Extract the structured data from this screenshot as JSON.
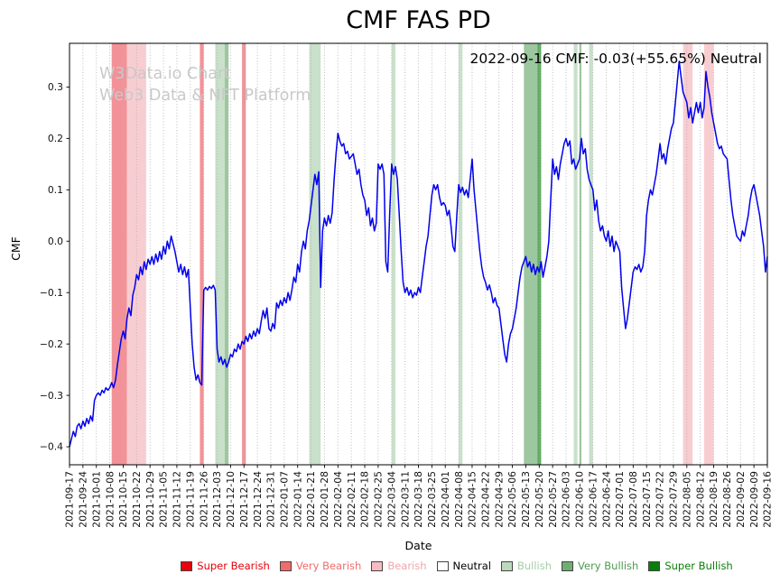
{
  "page": {
    "title": "CMF FAS PD"
  },
  "annotation": {
    "text": "2022-09-16 CMF: -0.03(+55.65%) Neutral"
  },
  "watermark": {
    "line1": "W3Data.io Chart",
    "line2": "Web3 Data & NFT Platform"
  },
  "axes": {
    "x_label": "Date",
    "y_label": "CMF"
  },
  "legend": {
    "items": [
      {
        "label": "Super Bearish",
        "color": "#e8000d",
        "text_color": "#e8000d"
      },
      {
        "label": "Very Bearish",
        "color": "#f26b6b",
        "text_color": "#ef6b6b"
      },
      {
        "label": "Bearish",
        "color": "#f7bcc1",
        "text_color": "#efa6ad"
      },
      {
        "label": "Neutral",
        "color": "#ffffff",
        "text_color": "#000000"
      },
      {
        "label": "Bullish",
        "color": "#bcd9bd",
        "text_color": "#a5cda7"
      },
      {
        "label": "Very Bullish",
        "color": "#6fae72",
        "text_color": "#4e9a51"
      },
      {
        "label": "Super Bullish",
        "color": "#0a7e0a",
        "text_color": "#0a7e0a"
      }
    ]
  },
  "chart_data": {
    "type": "line",
    "title": "CMF FAS PD",
    "xlabel": "Date",
    "ylabel": "CMF",
    "series_name": "CMF",
    "line_color": "#0000ee",
    "grid": "vertical-dotted",
    "legend_position": "bottom",
    "ylim": [
      -0.435,
      0.385
    ],
    "y_ticks": [
      -0.4,
      -0.3,
      -0.2,
      -0.1,
      0.0,
      0.1,
      0.2,
      0.3
    ],
    "start_date": "2021-09-17",
    "end_date": "2022-09-16",
    "latest": {
      "date": "2022-09-16",
      "cmf": -0.03,
      "change": "+55.65%",
      "signal": "Neutral"
    },
    "x_tick_labels": [
      "2021-09-17",
      "2021-09-24",
      "2021-10-01",
      "2021-10-08",
      "2021-10-15",
      "2021-10-22",
      "2021-10-29",
      "2021-11-05",
      "2021-11-12",
      "2021-11-19",
      "2021-11-26",
      "2021-12-03",
      "2021-12-10",
      "2021-12-17",
      "2021-12-24",
      "2021-12-31",
      "2022-01-07",
      "2022-01-14",
      "2022-01-21",
      "2022-01-28",
      "2022-02-04",
      "2022-02-11",
      "2022-02-18",
      "2022-02-25",
      "2022-03-04",
      "2022-03-11",
      "2022-03-18",
      "2022-03-25",
      "2022-04-01",
      "2022-04-08",
      "2022-04-15",
      "2022-04-22",
      "2022-04-29",
      "2022-05-06",
      "2022-05-13",
      "2022-05-20",
      "2022-05-27",
      "2022-06-03",
      "2022-06-10",
      "2022-06-17",
      "2022-06-24",
      "2022-07-01",
      "2022-07-08",
      "2022-07-15",
      "2022-07-22",
      "2022-07-29",
      "2022-08-05",
      "2022-08-12",
      "2022-08-19",
      "2022-08-26",
      "2022-09-02",
      "2022-09-09",
      "2022-09-16"
    ],
    "values": [
      -0.4,
      -0.385,
      -0.37,
      -0.38,
      -0.36,
      -0.355,
      -0.365,
      -0.35,
      -0.36,
      -0.345,
      -0.355,
      -0.34,
      -0.35,
      -0.31,
      -0.3,
      -0.295,
      -0.3,
      -0.29,
      -0.295,
      -0.285,
      -0.29,
      -0.285,
      -0.275,
      -0.285,
      -0.27,
      -0.24,
      -0.215,
      -0.19,
      -0.175,
      -0.19,
      -0.15,
      -0.13,
      -0.145,
      -0.105,
      -0.09,
      -0.065,
      -0.075,
      -0.05,
      -0.065,
      -0.04,
      -0.055,
      -0.035,
      -0.045,
      -0.03,
      -0.045,
      -0.025,
      -0.04,
      -0.02,
      -0.035,
      -0.01,
      -0.025,
      0.0,
      -0.015,
      0.01,
      -0.005,
      -0.02,
      -0.04,
      -0.06,
      -0.045,
      -0.065,
      -0.05,
      -0.07,
      -0.055,
      -0.13,
      -0.2,
      -0.245,
      -0.27,
      -0.26,
      -0.275,
      -0.28,
      -0.095,
      -0.09,
      -0.095,
      -0.088,
      -0.092,
      -0.086,
      -0.095,
      -0.21,
      -0.235,
      -0.225,
      -0.24,
      -0.23,
      -0.245,
      -0.235,
      -0.22,
      -0.225,
      -0.21,
      -0.215,
      -0.2,
      -0.21,
      -0.195,
      -0.2,
      -0.185,
      -0.195,
      -0.18,
      -0.19,
      -0.175,
      -0.185,
      -0.17,
      -0.18,
      -0.155,
      -0.135,
      -0.15,
      -0.13,
      -0.17,
      -0.175,
      -0.16,
      -0.17,
      -0.12,
      -0.13,
      -0.115,
      -0.125,
      -0.11,
      -0.12,
      -0.1,
      -0.115,
      -0.095,
      -0.07,
      -0.08,
      -0.045,
      -0.06,
      -0.02,
      0.0,
      -0.015,
      0.02,
      0.04,
      0.07,
      0.1,
      0.13,
      0.11,
      0.135,
      -0.09,
      0.02,
      0.045,
      0.03,
      0.05,
      0.035,
      0.055,
      0.12,
      0.17,
      0.21,
      0.195,
      0.185,
      0.19,
      0.17,
      0.175,
      0.16,
      0.165,
      0.17,
      0.15,
      0.13,
      0.14,
      0.11,
      0.09,
      0.08,
      0.05,
      0.065,
      0.03,
      0.045,
      0.02,
      0.035,
      0.15,
      0.14,
      0.15,
      0.13,
      -0.04,
      -0.06,
      0.05,
      0.15,
      0.13,
      0.145,
      0.12,
      0.05,
      -0.02,
      -0.08,
      -0.1,
      -0.09,
      -0.105,
      -0.095,
      -0.11,
      -0.1,
      -0.105,
      -0.09,
      -0.1,
      -0.07,
      -0.04,
      -0.01,
      0.01,
      0.05,
      0.09,
      0.11,
      0.1,
      0.11,
      0.085,
      0.07,
      0.075,
      0.07,
      0.05,
      0.06,
      0.03,
      -0.01,
      -0.02,
      0.05,
      0.11,
      0.095,
      0.105,
      0.09,
      0.1,
      0.085,
      0.12,
      0.16,
      0.1,
      0.06,
      0.02,
      -0.02,
      -0.05,
      -0.07,
      -0.08,
      -0.095,
      -0.085,
      -0.1,
      -0.12,
      -0.11,
      -0.125,
      -0.13,
      -0.16,
      -0.19,
      -0.22,
      -0.235,
      -0.2,
      -0.18,
      -0.17,
      -0.15,
      -0.13,
      -0.1,
      -0.07,
      -0.05,
      -0.04,
      -0.03,
      -0.05,
      -0.04,
      -0.06,
      -0.045,
      -0.065,
      -0.05,
      -0.06,
      -0.04,
      -0.07,
      -0.05,
      -0.03,
      0.0,
      0.08,
      0.16,
      0.13,
      0.145,
      0.12,
      0.15,
      0.17,
      0.19,
      0.2,
      0.185,
      0.195,
      0.15,
      0.16,
      0.14,
      0.15,
      0.16,
      0.2,
      0.17,
      0.18,
      0.14,
      0.12,
      0.11,
      0.1,
      0.06,
      0.08,
      0.04,
      0.02,
      0.03,
      0.01,
      0.0,
      0.02,
      -0.01,
      0.01,
      -0.02,
      0.0,
      -0.01,
      -0.02,
      -0.09,
      -0.13,
      -0.17,
      -0.15,
      -0.12,
      -0.09,
      -0.06,
      -0.05,
      -0.055,
      -0.045,
      -0.06,
      -0.05,
      -0.02,
      0.05,
      0.08,
      0.1,
      0.09,
      0.11,
      0.13,
      0.16,
      0.19,
      0.16,
      0.17,
      0.15,
      0.18,
      0.2,
      0.22,
      0.23,
      0.27,
      0.31,
      0.35,
      0.32,
      0.29,
      0.28,
      0.27,
      0.24,
      0.26,
      0.23,
      0.25,
      0.27,
      0.25,
      0.27,
      0.24,
      0.26,
      0.33,
      0.3,
      0.28,
      0.25,
      0.23,
      0.21,
      0.19,
      0.18,
      0.185,
      0.17,
      0.165,
      0.16,
      0.12,
      0.08,
      0.05,
      0.03,
      0.01,
      0.005,
      0.0,
      0.02,
      0.01,
      0.03,
      0.05,
      0.08,
      0.1,
      0.11,
      0.09,
      0.07,
      0.05,
      0.02,
      -0.01,
      -0.06,
      -0.03
    ],
    "band_colors": {
      "super_bearish": "#e8343c",
      "very_bearish": "#f29298",
      "bearish": "#f8cdd1",
      "bullish": "#c9e0ca",
      "very_bullish": "#9dc79f",
      "super_bullish": "#5ea961"
    },
    "bands": [
      {
        "start": "2021-10-09",
        "end": "2021-10-17",
        "level": "very_bearish"
      },
      {
        "start": "2021-10-17",
        "end": "2021-10-27",
        "level": "bearish"
      },
      {
        "start": "2021-11-24",
        "end": "2021-11-26",
        "level": "very_bearish"
      },
      {
        "start": "2021-12-02",
        "end": "2021-12-07",
        "level": "bullish"
      },
      {
        "start": "2021-12-07",
        "end": "2021-12-09",
        "level": "very_bullish"
      },
      {
        "start": "2021-12-16",
        "end": "2021-12-18",
        "level": "very_bearish"
      },
      {
        "start": "2022-01-20",
        "end": "2022-01-26",
        "level": "bullish"
      },
      {
        "start": "2022-03-04",
        "end": "2022-03-06",
        "level": "bullish"
      },
      {
        "start": "2022-04-08",
        "end": "2022-04-10",
        "level": "bullish"
      },
      {
        "start": "2022-05-12",
        "end": "2022-05-19",
        "level": "very_bullish"
      },
      {
        "start": "2022-05-19",
        "end": "2022-05-21",
        "level": "super_bullish"
      },
      {
        "start": "2022-06-07",
        "end": "2022-06-09",
        "level": "bullish"
      },
      {
        "start": "2022-06-10",
        "end": "2022-06-11",
        "level": "very_bullish"
      },
      {
        "start": "2022-06-15",
        "end": "2022-06-17",
        "level": "bullish"
      },
      {
        "start": "2022-08-03",
        "end": "2022-08-08",
        "level": "bearish"
      },
      {
        "start": "2022-08-14",
        "end": "2022-08-19",
        "level": "bearish"
      }
    ]
  }
}
